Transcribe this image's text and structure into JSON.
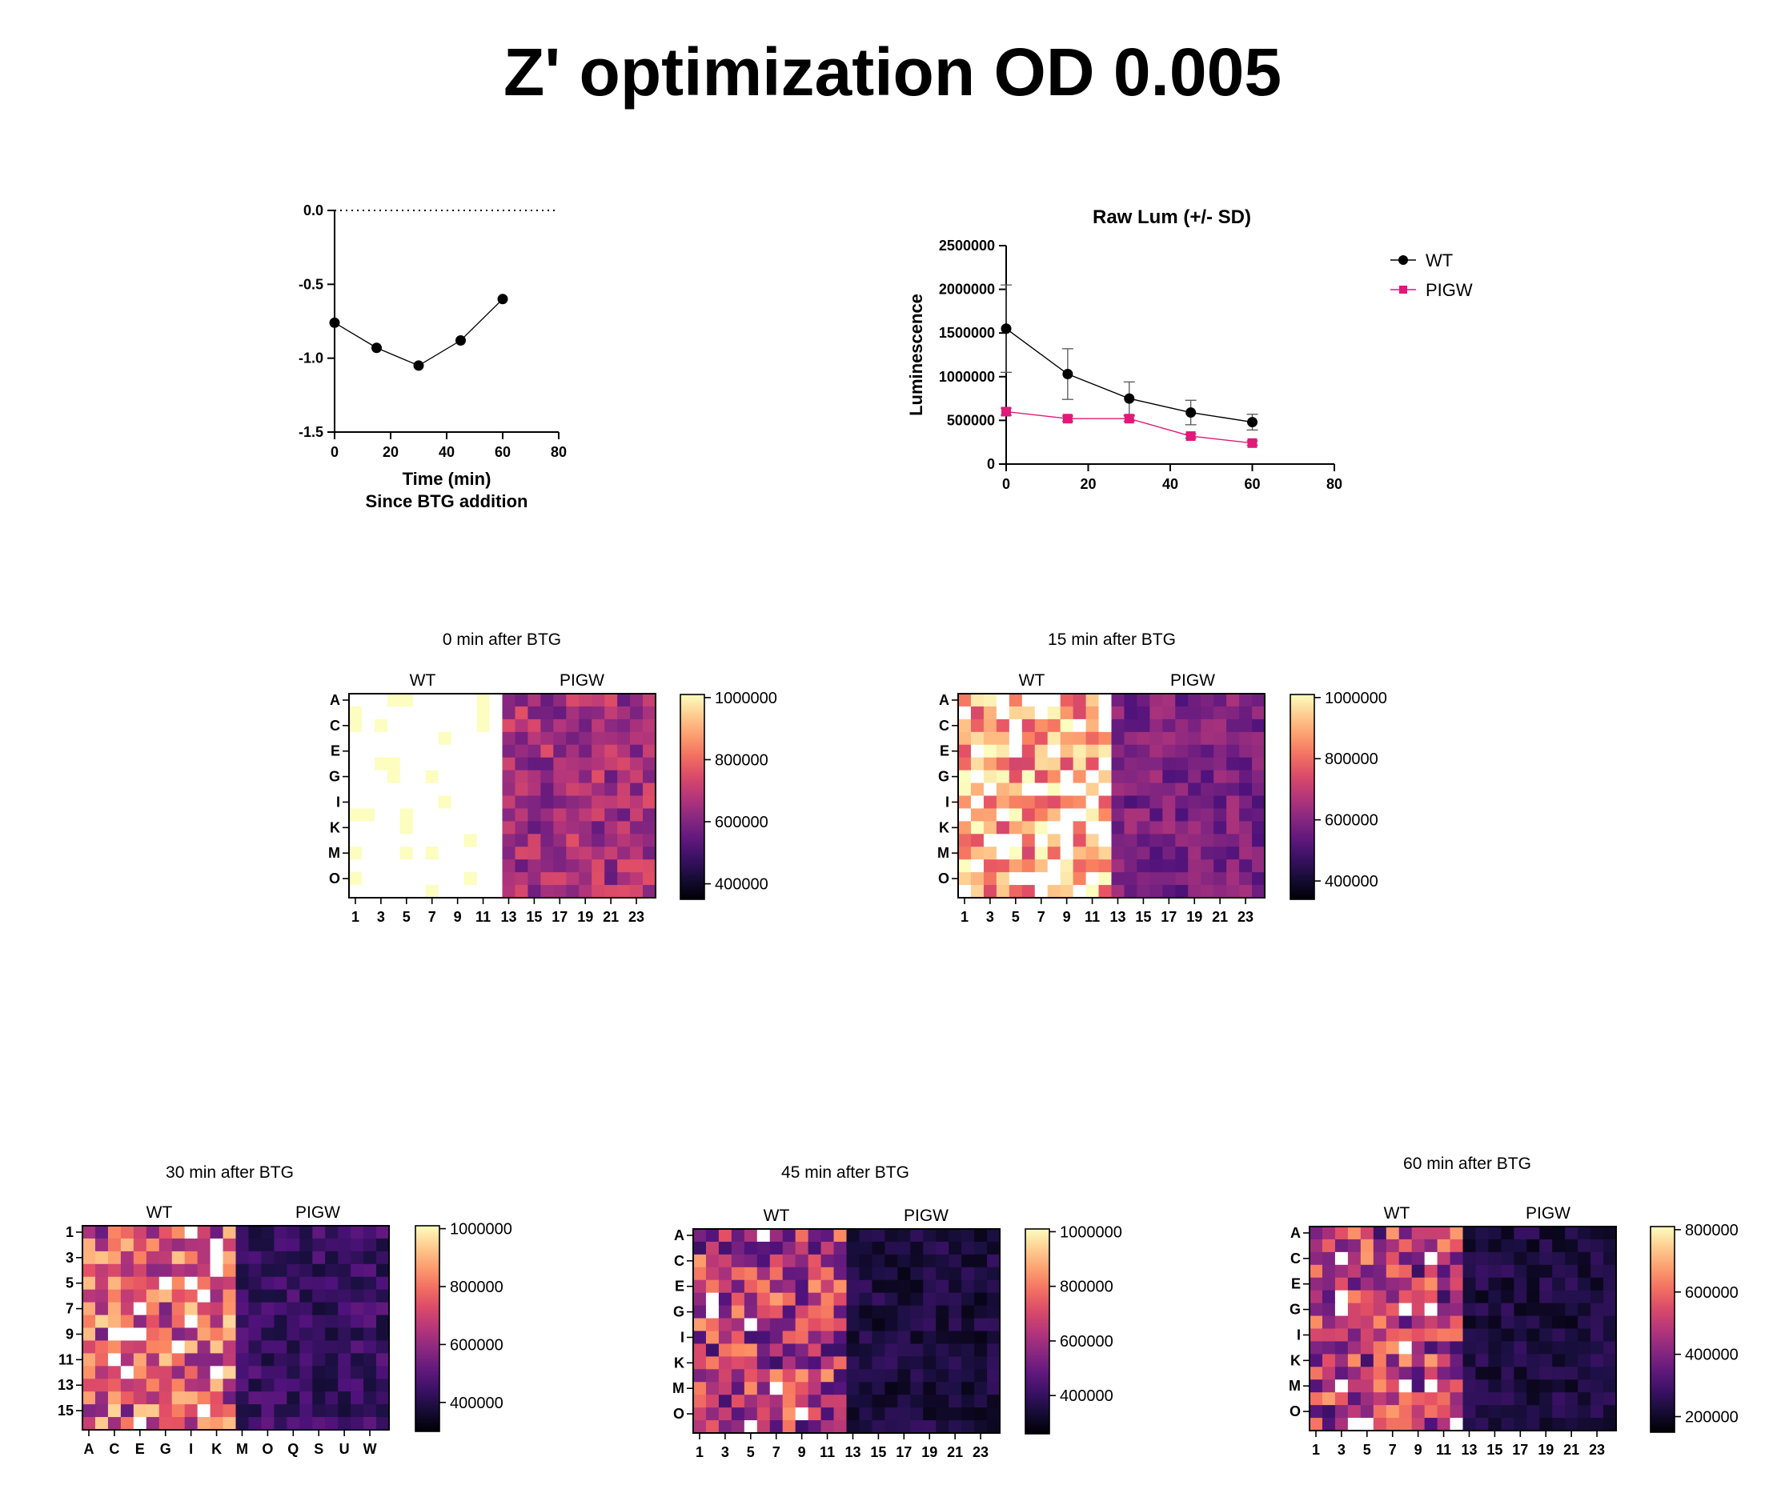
{
  "page": {
    "title": "Z' optimization OD 0.005"
  },
  "colors": {
    "wt": "#000000",
    "pigw": "#e0197a",
    "colormap": "magma"
  },
  "chart_data": [
    {
      "id": "zprime",
      "type": "line",
      "title": "",
      "xlabel_line1": "Time (min)",
      "xlabel_line2": "Since BTG addition",
      "ylabel": "",
      "xlim": [
        0,
        80
      ],
      "ylim": [
        -1.5,
        0.0
      ],
      "xticks": [
        0,
        20,
        40,
        60,
        80
      ],
      "yticks": [
        0.0,
        -0.5,
        -1.0,
        -1.5
      ],
      "ytick_labels": [
        "0.0",
        "-0.5",
        "-1.0",
        "-1.5"
      ],
      "reference_line_y": 0.0,
      "series": [
        {
          "x": [
            0,
            15,
            30,
            45,
            60
          ],
          "y": [
            -0.76,
            -0.93,
            -1.05,
            -0.88,
            -0.6
          ]
        }
      ]
    },
    {
      "id": "rawlum",
      "type": "line",
      "title": "Raw Lum (+/- SD)",
      "xlabel": "",
      "ylabel": "Luminescence",
      "xlim": [
        0,
        80
      ],
      "ylim": [
        0,
        2500000
      ],
      "xticks": [
        0,
        20,
        40,
        60,
        80
      ],
      "yticks": [
        0,
        500000,
        1000000,
        1500000,
        2000000,
        2500000
      ],
      "legend_position": "top-right",
      "series": [
        {
          "name": "WT",
          "x": [
            0,
            15,
            30,
            45,
            60
          ],
          "y": [
            1550000,
            1030000,
            750000,
            590000,
            480000
          ],
          "sd": [
            500000,
            290000,
            190000,
            140000,
            90000
          ]
        },
        {
          "name": "PIGW",
          "x": [
            0,
            15,
            30,
            45,
            60
          ],
          "y": [
            600000,
            520000,
            520000,
            320000,
            240000
          ],
          "sd": [
            40000,
            30000,
            30000,
            25000,
            25000
          ]
        }
      ]
    },
    {
      "id": "hm0",
      "type": "heatmap",
      "title": "0 min after BTG",
      "groups": [
        "WT",
        "PIGW"
      ],
      "row_labels": [
        "A",
        "C",
        "E",
        "G",
        "I",
        "K",
        "M",
        "O"
      ],
      "col_labels": [
        "1",
        "3",
        "5",
        "7",
        "9",
        "11",
        "13",
        "15",
        "17",
        "19",
        "21",
        "23"
      ],
      "n_rows": 16,
      "n_cols": 24,
      "colorbar_min": 350000,
      "colorbar_max": 1010000,
      "colorbar_ticks": [
        1000000,
        800000,
        600000,
        400000
      ],
      "wt_level": 1.05,
      "wt_spread": 0.05,
      "pigw_level": 0.46,
      "pigw_spread": 0.16
    },
    {
      "id": "hm15",
      "type": "heatmap",
      "title": "15 min after BTG",
      "groups": [
        "WT",
        "PIGW"
      ],
      "row_labels": [
        "A",
        "C",
        "E",
        "G",
        "I",
        "K",
        "M",
        "O"
      ],
      "col_labels": [
        "1",
        "3",
        "5",
        "7",
        "9",
        "11",
        "13",
        "15",
        "17",
        "19",
        "21",
        "23"
      ],
      "n_rows": 16,
      "n_cols": 24,
      "colorbar_min": 340000,
      "colorbar_max": 1010000,
      "colorbar_ticks": [
        1000000,
        800000,
        600000,
        400000
      ],
      "wt_level": 0.86,
      "wt_spread": 0.28,
      "pigw_level": 0.36,
      "pigw_spread": 0.12
    },
    {
      "id": "hm30",
      "type": "heatmap",
      "title": "30 min after BTG",
      "groups": [
        "WT",
        "PIGW"
      ],
      "row_labels": [
        "1",
        "3",
        "5",
        "7",
        "9",
        "11",
        "13",
        "15"
      ],
      "col_labels": [
        "A",
        "C",
        "E",
        "G",
        "I",
        "K",
        "M",
        "O",
        "Q",
        "S",
        "U",
        "W"
      ],
      "n_rows": 16,
      "n_cols": 24,
      "colorbar_min": 300000,
      "colorbar_max": 1010000,
      "colorbar_ticks": [
        1000000,
        800000,
        600000,
        400000
      ],
      "wt_level": 0.62,
      "wt_spread": 0.3,
      "pigw_level": 0.2,
      "pigw_spread": 0.1
    },
    {
      "id": "hm45",
      "type": "heatmap",
      "title": "45 min after BTG",
      "groups": [
        "WT",
        "PIGW"
      ],
      "row_labels": [
        "A",
        "C",
        "E",
        "G",
        "I",
        "K",
        "M",
        "O"
      ],
      "col_labels": [
        "1",
        "3",
        "5",
        "7",
        "9",
        "11",
        "13",
        "15",
        "17",
        "19",
        "21",
        "23"
      ],
      "n_rows": 16,
      "n_cols": 24,
      "colorbar_min": 260000,
      "colorbar_max": 1010000,
      "colorbar_ticks": [
        1000000,
        800000,
        600000,
        400000
      ],
      "wt_level": 0.5,
      "wt_spread": 0.3,
      "pigw_level": 0.12,
      "pigw_spread": 0.08
    },
    {
      "id": "hm60",
      "type": "heatmap",
      "title": "60 min after BTG",
      "groups": [
        "WT",
        "PIGW"
      ],
      "row_labels": [
        "A",
        "C",
        "E",
        "G",
        "I",
        "K",
        "M",
        "O"
      ],
      "col_labels": [
        "1",
        "3",
        "5",
        "7",
        "9",
        "11",
        "13",
        "15",
        "17",
        "19",
        "21",
        "23"
      ],
      "n_rows": 16,
      "n_cols": 24,
      "colorbar_min": 150000,
      "colorbar_max": 810000,
      "colorbar_ticks": [
        800000,
        600000,
        400000,
        200000
      ],
      "wt_level": 0.5,
      "wt_spread": 0.3,
      "pigw_level": 0.12,
      "pigw_spread": 0.08
    }
  ]
}
